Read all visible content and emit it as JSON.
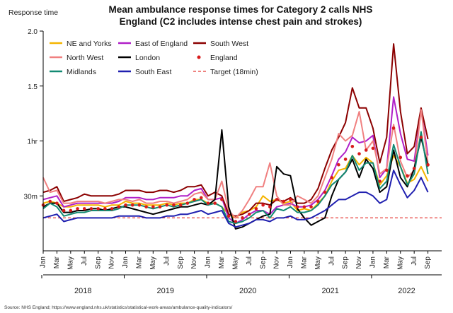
{
  "chart_data": {
    "type": "line",
    "title_lines": [
      "Mean ambulance response times for Category 2 calls NHS",
      "England (C2 includes intense chest pain and strokes)"
    ],
    "ylabel": "Response time",
    "ylim_minutes": [
      0,
      120
    ],
    "y_ticks": [
      {
        "value": 30,
        "label": "30m"
      },
      {
        "value": 60,
        "label": "1hr"
      },
      {
        "value": 90,
        "label": "1.5"
      },
      {
        "value": 120,
        "label": "2.0"
      }
    ],
    "x_tick_labels": [
      "Jan",
      "Mar",
      "May",
      "Jul",
      "Sep",
      "Nov",
      "Jan",
      "Mar",
      "May",
      "Jul",
      "Sep",
      "Nov",
      "Jan",
      "Mar",
      "May",
      "Jul",
      "Sep",
      "Nov",
      "Jan",
      "Mar",
      "May",
      "Jul",
      "Sep",
      "Nov",
      "Jan",
      "Mar",
      "May",
      "Jul",
      "Sep"
    ],
    "year_labels": [
      "2018",
      "2019",
      "2020",
      "2021",
      "2022"
    ],
    "n_months": 57,
    "target": {
      "name": "Target (18min)",
      "value": 18,
      "color": "#e53935"
    },
    "series": [
      {
        "name": "NE and Yorks",
        "color": "#f5b400",
        "style": "line",
        "values": [
          26,
          27,
          26,
          24,
          24,
          25,
          25,
          25,
          25,
          24,
          25,
          25,
          27,
          26,
          26,
          25,
          25,
          25,
          26,
          25,
          26,
          26,
          28,
          28,
          26,
          26,
          24,
          20,
          18,
          21,
          22,
          24,
          30,
          27,
          28,
          26,
          27,
          22,
          23,
          22,
          26,
          30,
          38,
          44,
          45,
          52,
          47,
          51,
          48,
          36,
          41,
          52,
          46,
          37,
          39,
          46,
          38
        ]
      },
      {
        "name": "East of England",
        "color": "#b020c8",
        "style": "line",
        "values": [
          28,
          29,
          30,
          24,
          25,
          26,
          26,
          26,
          26,
          26,
          26,
          27,
          29,
          29,
          29,
          28,
          28,
          29,
          29,
          29,
          30,
          30,
          33,
          34,
          28,
          28,
          29,
          18,
          15,
          17,
          20,
          22,
          22,
          20,
          24,
          25,
          26,
          24,
          24,
          25,
          28,
          33,
          41,
          50,
          54,
          62,
          59,
          60,
          63,
          40,
          45,
          84,
          64,
          50,
          49,
          77,
          52
        ]
      },
      {
        "name": "South West",
        "color": "#8b0000",
        "style": "line",
        "values": [
          32,
          33,
          35,
          27,
          28,
          29,
          31,
          30,
          30,
          30,
          30,
          31,
          33,
          33,
          33,
          32,
          32,
          33,
          33,
          32,
          33,
          35,
          35,
          36,
          30,
          32,
          30,
          20,
          19,
          20,
          22,
          26,
          26,
          25,
          28,
          27,
          29,
          26,
          26,
          28,
          34,
          45,
          55,
          62,
          70,
          89,
          78,
          78,
          67,
          48,
          62,
          113,
          76,
          53,
          57,
          78,
          61
        ]
      },
      {
        "name": "North West",
        "color": "#f08080",
        "style": "line",
        "values": [
          40,
          32,
          33,
          26,
          26,
          27,
          27,
          27,
          27,
          26,
          27,
          28,
          28,
          27,
          28,
          26,
          26,
          27,
          27,
          26,
          27,
          28,
          31,
          32,
          28,
          28,
          38,
          22,
          18,
          22,
          28,
          35,
          35,
          48,
          30,
          25,
          25,
          30,
          28,
          26,
          30,
          40,
          50,
          64,
          60,
          63,
          76,
          55,
          60,
          42,
          45,
          69,
          49,
          40,
          44,
          77,
          48
        ]
      },
      {
        "name": "London",
        "color": "#000000",
        "style": "line",
        "values": [
          24,
          26,
          26,
          21,
          21,
          22,
          22,
          23,
          23,
          22,
          23,
          24,
          24,
          23,
          22,
          21,
          20,
          21,
          22,
          23,
          24,
          24,
          25,
          26,
          25,
          28,
          66,
          24,
          12,
          13,
          15,
          17,
          19,
          20,
          46,
          42,
          41,
          23,
          18,
          14,
          16,
          18,
          30,
          39,
          43,
          50,
          40,
          50,
          45,
          32,
          35,
          55,
          40,
          35,
          45,
          62,
          46
        ]
      },
      {
        "name": "Midlands",
        "color": "#138a73",
        "style": "line",
        "values": [
          23,
          26,
          24,
          19,
          20,
          21,
          21,
          22,
          22,
          22,
          22,
          23,
          25,
          25,
          25,
          24,
          23,
          24,
          25,
          24,
          25,
          26,
          27,
          28,
          25,
          26,
          24,
          16,
          15,
          16,
          18,
          21,
          22,
          18,
          23,
          22,
          24,
          21,
          21,
          22,
          25,
          30,
          36,
          39,
          43,
          52,
          44,
          48,
          48,
          34,
          38,
          58,
          46,
          36,
          42,
          65,
          42
        ]
      },
      {
        "name": "South East",
        "color": "#2020b0",
        "style": "line",
        "values": [
          18,
          19,
          20,
          16,
          17,
          18,
          18,
          18,
          18,
          18,
          18,
          19,
          19,
          19,
          19,
          18,
          18,
          18,
          19,
          19,
          20,
          20,
          21,
          22,
          20,
          21,
          22,
          15,
          13,
          14,
          15,
          17,
          17,
          16,
          18,
          18,
          19,
          17,
          17,
          18,
          20,
          22,
          25,
          28,
          28,
          30,
          32,
          32,
          30,
          26,
          28,
          44,
          36,
          29,
          33,
          40,
          32
        ]
      },
      {
        "name": "England",
        "color": "#d81b1b",
        "style": "dots",
        "values": [
          25,
          27,
          26,
          22,
          22,
          23,
          23,
          23,
          23,
          23,
          23,
          24,
          25,
          25,
          25,
          24,
          24,
          24,
          25,
          25,
          25,
          26,
          28,
          29,
          26,
          26,
          28,
          19,
          16,
          18,
          20,
          23,
          25,
          24,
          28,
          27,
          28,
          24,
          24,
          24,
          27,
          32,
          40,
          47,
          50,
          57,
          53,
          55,
          56,
          38,
          44,
          67,
          51,
          41,
          45,
          62,
          47
        ]
      }
    ],
    "legend": {
      "placement": "top-left",
      "columns": 3
    }
  },
  "source_text": "Source: NHS England; https://www.england.nhs.uk/statistics/statistical-work-areas/ambulance-quality-indicators/"
}
